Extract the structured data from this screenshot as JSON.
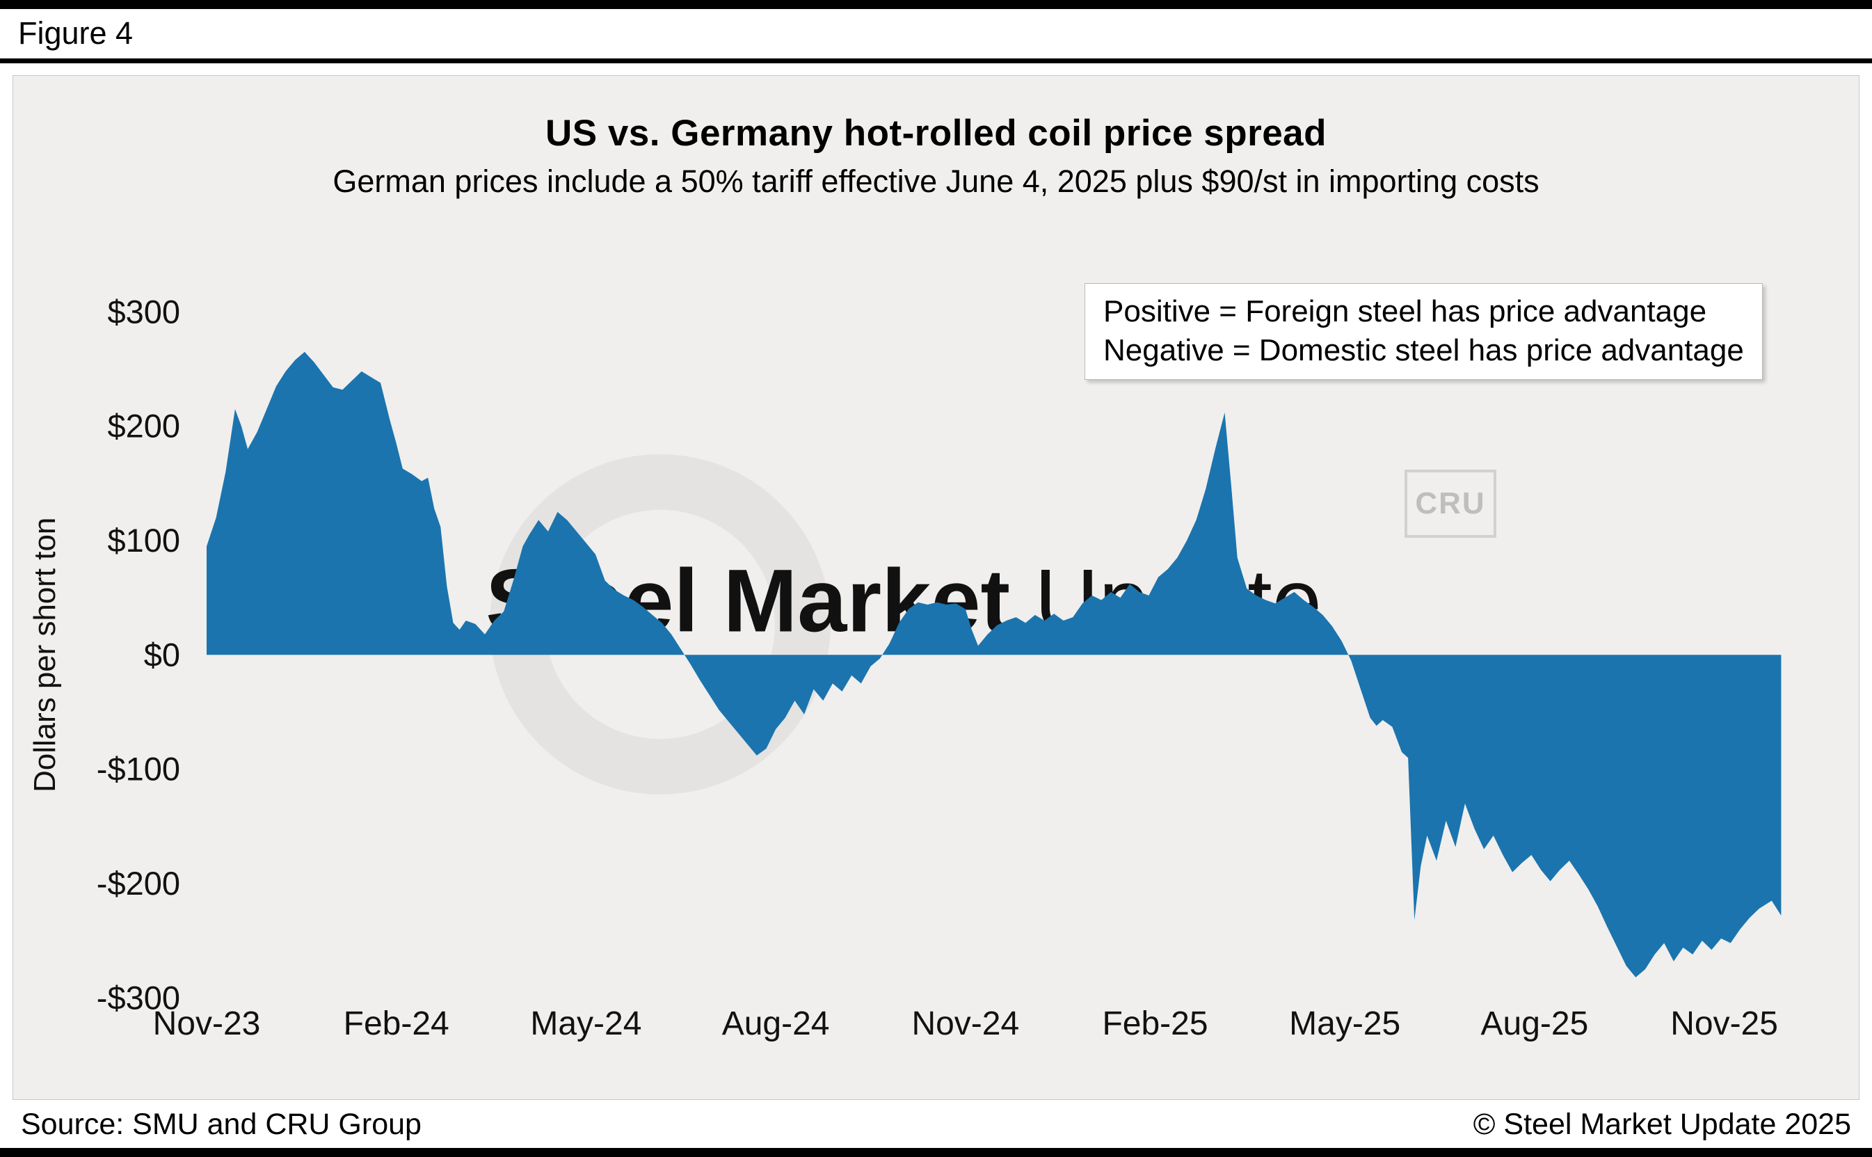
{
  "figure_label": "Figure 4",
  "chart": {
    "title": "US vs. Germany hot-rolled coil price spread",
    "subtitle": "German prices include a 50% tariff effective June 4, 2025 plus $90/st in importing costs"
  },
  "legend": {
    "positive": "Positive = Foreign steel has price advantage",
    "negative": "Negative = Domestic steel has price advantage"
  },
  "watermark": {
    "bold": "Steel Market",
    "light": "Update",
    "cru": "CRU"
  },
  "footer": {
    "source": "Source: SMU and CRU Group",
    "copyright": "© Steel Market Update 2025"
  },
  "chart_data": {
    "type": "area",
    "title": "US vs. Germany hot-rolled coil price spread",
    "subtitle": "German prices include a 50% tariff effective June 4, 2025 plus $90/st in importing costs",
    "xlabel": "",
    "ylabel": "Dollars per short ton",
    "ylim": [
      -300,
      300
    ],
    "grid": false,
    "legend_position": "top-right",
    "fill_color": "#1b74ae",
    "x_unit": "months since Nov-2023",
    "y_ticks": [
      {
        "value": 300,
        "label": "$300"
      },
      {
        "value": 200,
        "label": "$200"
      },
      {
        "value": 100,
        "label": "$100"
      },
      {
        "value": 0,
        "label": "$0"
      },
      {
        "value": -100,
        "label": "-$100"
      },
      {
        "value": -200,
        "label": "-$200"
      },
      {
        "value": -300,
        "label": "-$300"
      }
    ],
    "x_ticks": [
      {
        "t": 0,
        "label": "Nov-23"
      },
      {
        "t": 3,
        "label": "Feb-24"
      },
      {
        "t": 6,
        "label": "May-24"
      },
      {
        "t": 9,
        "label": "Aug-24"
      },
      {
        "t": 12,
        "label": "Nov-24"
      },
      {
        "t": 15,
        "label": "Feb-25"
      },
      {
        "t": 18,
        "label": "May-25"
      },
      {
        "t": 21,
        "label": "Aug-25"
      },
      {
        "t": 24,
        "label": "Nov-25"
      }
    ],
    "points": [
      [
        0.0,
        95
      ],
      [
        0.15,
        120
      ],
      [
        0.3,
        160
      ],
      [
        0.45,
        215
      ],
      [
        0.55,
        200
      ],
      [
        0.65,
        180
      ],
      [
        0.8,
        195
      ],
      [
        0.95,
        215
      ],
      [
        1.1,
        235
      ],
      [
        1.25,
        248
      ],
      [
        1.4,
        258
      ],
      [
        1.55,
        265
      ],
      [
        1.7,
        256
      ],
      [
        1.85,
        245
      ],
      [
        2.0,
        234
      ],
      [
        2.15,
        232
      ],
      [
        2.3,
        240
      ],
      [
        2.45,
        248
      ],
      [
        2.6,
        243
      ],
      [
        2.75,
        238
      ],
      [
        2.9,
        205
      ],
      [
        3.0,
        185
      ],
      [
        3.1,
        163
      ],
      [
        3.25,
        158
      ],
      [
        3.4,
        152
      ],
      [
        3.5,
        155
      ],
      [
        3.6,
        128
      ],
      [
        3.7,
        112
      ],
      [
        3.8,
        60
      ],
      [
        3.9,
        28
      ],
      [
        4.0,
        22
      ],
      [
        4.1,
        30
      ],
      [
        4.25,
        27
      ],
      [
        4.4,
        18
      ],
      [
        4.55,
        30
      ],
      [
        4.7,
        38
      ],
      [
        4.85,
        65
      ],
      [
        5.0,
        95
      ],
      [
        5.1,
        105
      ],
      [
        5.25,
        118
      ],
      [
        5.4,
        108
      ],
      [
        5.55,
        125
      ],
      [
        5.7,
        118
      ],
      [
        5.85,
        108
      ],
      [
        6.0,
        98
      ],
      [
        6.15,
        88
      ],
      [
        6.3,
        65
      ],
      [
        6.45,
        57
      ],
      [
        6.6,
        52
      ],
      [
        6.75,
        48
      ],
      [
        6.9,
        42
      ],
      [
        7.05,
        35
      ],
      [
        7.2,
        28
      ],
      [
        7.35,
        18
      ],
      [
        7.5,
        5
      ],
      [
        7.65,
        -8
      ],
      [
        7.8,
        -22
      ],
      [
        7.95,
        -35
      ],
      [
        8.1,
        -48
      ],
      [
        8.25,
        -58
      ],
      [
        8.4,
        -68
      ],
      [
        8.55,
        -78
      ],
      [
        8.7,
        -88
      ],
      [
        8.85,
        -82
      ],
      [
        9.0,
        -65
      ],
      [
        9.15,
        -55
      ],
      [
        9.3,
        -40
      ],
      [
        9.45,
        -52
      ],
      [
        9.6,
        -30
      ],
      [
        9.75,
        -40
      ],
      [
        9.9,
        -25
      ],
      [
        10.05,
        -32
      ],
      [
        10.2,
        -18
      ],
      [
        10.35,
        -25
      ],
      [
        10.5,
        -10
      ],
      [
        10.65,
        -3
      ],
      [
        10.8,
        10
      ],
      [
        10.95,
        28
      ],
      [
        11.1,
        40
      ],
      [
        11.25,
        46
      ],
      [
        11.4,
        44
      ],
      [
        11.55,
        46
      ],
      [
        11.7,
        44
      ],
      [
        11.85,
        45
      ],
      [
        12.0,
        40
      ],
      [
        12.1,
        22
      ],
      [
        12.2,
        8
      ],
      [
        12.35,
        18
      ],
      [
        12.5,
        26
      ],
      [
        12.65,
        30
      ],
      [
        12.8,
        33
      ],
      [
        12.95,
        28
      ],
      [
        13.1,
        35
      ],
      [
        13.25,
        30
      ],
      [
        13.4,
        36
      ],
      [
        13.55,
        30
      ],
      [
        13.7,
        33
      ],
      [
        13.85,
        45
      ],
      [
        14.0,
        52
      ],
      [
        14.15,
        48
      ],
      [
        14.3,
        55
      ],
      [
        14.45,
        50
      ],
      [
        14.6,
        62
      ],
      [
        14.75,
        55
      ],
      [
        14.9,
        52
      ],
      [
        15.05,
        68
      ],
      [
        15.2,
        75
      ],
      [
        15.35,
        85
      ],
      [
        15.5,
        100
      ],
      [
        15.65,
        118
      ],
      [
        15.8,
        145
      ],
      [
        15.95,
        180
      ],
      [
        16.1,
        212
      ],
      [
        16.2,
        150
      ],
      [
        16.3,
        85
      ],
      [
        16.45,
        58
      ],
      [
        16.6,
        52
      ],
      [
        16.75,
        48
      ],
      [
        16.9,
        45
      ],
      [
        17.05,
        50
      ],
      [
        17.2,
        55
      ],
      [
        17.35,
        48
      ],
      [
        17.5,
        42
      ],
      [
        17.65,
        35
      ],
      [
        17.8,
        25
      ],
      [
        17.95,
        12
      ],
      [
        18.1,
        -5
      ],
      [
        18.25,
        -30
      ],
      [
        18.4,
        -55
      ],
      [
        18.5,
        -62
      ],
      [
        18.6,
        -57
      ],
      [
        18.75,
        -63
      ],
      [
        18.9,
        -85
      ],
      [
        19.0,
        -90
      ],
      [
        19.1,
        -232
      ],
      [
        19.2,
        -185
      ],
      [
        19.3,
        -158
      ],
      [
        19.45,
        -180
      ],
      [
        19.6,
        -145
      ],
      [
        19.75,
        -168
      ],
      [
        19.9,
        -130
      ],
      [
        20.05,
        -152
      ],
      [
        20.2,
        -170
      ],
      [
        20.35,
        -158
      ],
      [
        20.5,
        -175
      ],
      [
        20.65,
        -190
      ],
      [
        20.8,
        -182
      ],
      [
        20.95,
        -175
      ],
      [
        21.1,
        -188
      ],
      [
        21.25,
        -198
      ],
      [
        21.4,
        -188
      ],
      [
        21.55,
        -180
      ],
      [
        21.7,
        -192
      ],
      [
        21.85,
        -205
      ],
      [
        22.0,
        -220
      ],
      [
        22.15,
        -238
      ],
      [
        22.3,
        -255
      ],
      [
        22.45,
        -272
      ],
      [
        22.6,
        -282
      ],
      [
        22.75,
        -275
      ],
      [
        22.9,
        -262
      ],
      [
        23.05,
        -252
      ],
      [
        23.2,
        -268
      ],
      [
        23.35,
        -256
      ],
      [
        23.5,
        -262
      ],
      [
        23.65,
        -250
      ],
      [
        23.8,
        -258
      ],
      [
        23.95,
        -248
      ],
      [
        24.1,
        -252
      ],
      [
        24.25,
        -240
      ],
      [
        24.4,
        -230
      ],
      [
        24.55,
        -222
      ],
      [
        24.75,
        -215
      ],
      [
        24.9,
        -228
      ]
    ]
  }
}
